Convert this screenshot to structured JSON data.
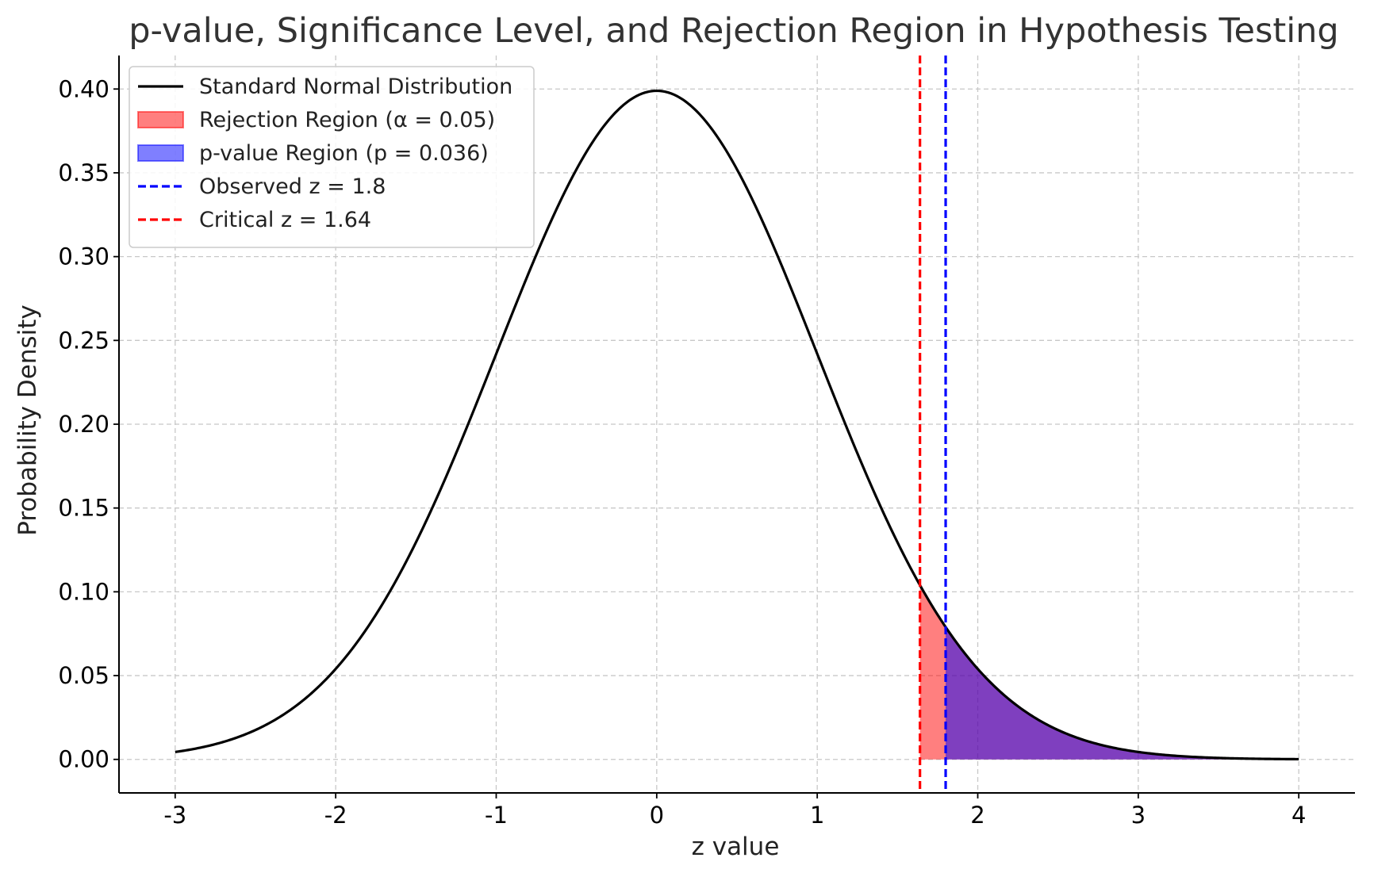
{
  "chart_data": {
    "type": "line",
    "title": "p-value, Significance Level, and Rejection Region in Hypothesis Testing",
    "xlabel": "z value",
    "ylabel": "Probability Density",
    "xlim": [
      -3.35,
      4.35
    ],
    "ylim": [
      -0.02,
      0.42
    ],
    "xticks": [
      -3,
      -2,
      -1,
      0,
      1,
      2,
      3,
      4
    ],
    "xtick_labels": [
      "-3",
      "-2",
      "-1",
      "0",
      "1",
      "2",
      "3",
      "4"
    ],
    "yticks": [
      0.0,
      0.05,
      0.1,
      0.15,
      0.2,
      0.25,
      0.3,
      0.35,
      0.4
    ],
    "ytick_labels": [
      "0.00",
      "0.05",
      "0.10",
      "0.15",
      "0.20",
      "0.25",
      "0.30",
      "0.35",
      "0.40"
    ],
    "grid": true,
    "legend_position": "top-left",
    "series": [
      {
        "name": "Standard Normal Distribution",
        "kind": "line",
        "color": "#000000",
        "x": [
          -3.0,
          -2.75,
          -2.5,
          -2.25,
          -2.0,
          -1.75,
          -1.5,
          -1.25,
          -1.0,
          -0.75,
          -0.5,
          -0.25,
          0.0,
          0.25,
          0.5,
          0.75,
          1.0,
          1.25,
          1.5,
          1.64,
          1.75,
          1.8,
          2.0,
          2.25,
          2.5,
          2.75,
          3.0,
          3.25,
          3.5,
          3.75,
          4.0
        ],
        "y": [
          0.0044,
          0.0091,
          0.0175,
          0.0317,
          0.054,
          0.0863,
          0.1295,
          0.1826,
          0.242,
          0.3011,
          0.3521,
          0.3867,
          0.3989,
          0.3867,
          0.3521,
          0.3011,
          0.242,
          0.1826,
          0.1295,
          0.104,
          0.0863,
          0.079,
          0.054,
          0.0317,
          0.0175,
          0.0091,
          0.0044,
          0.002,
          0.0009,
          0.0004,
          0.0001
        ]
      },
      {
        "name": "Rejection Region (α = 0.05)",
        "kind": "area",
        "color": "#ff0000",
        "from": 1.64,
        "to": 4.0
      },
      {
        "name": "p-value Region (p = 0.036)",
        "kind": "area",
        "color": "#0000ff",
        "from": 1.8,
        "to": 4.0
      },
      {
        "name": "Observed z = 1.8",
        "kind": "vline",
        "color": "#0000ff",
        "x": 1.8
      },
      {
        "name": "Critical z = 1.64",
        "kind": "vline",
        "color": "#ff0000",
        "x": 1.64
      }
    ]
  }
}
